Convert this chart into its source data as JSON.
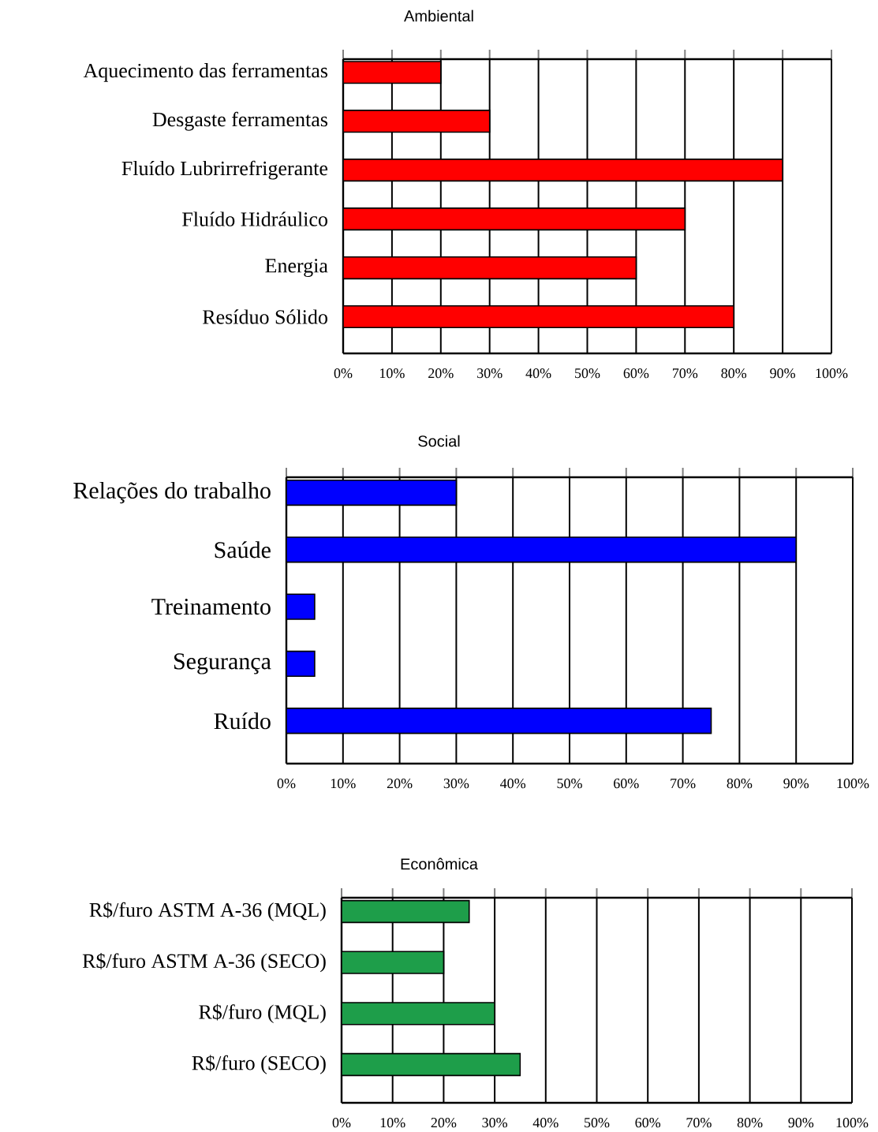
{
  "chart_data": [
    {
      "type": "bar",
      "orientation": "horizontal",
      "title": "Ambiental",
      "categories": [
        "Aquecimento das ferramentas",
        "Desgaste ferramentas",
        "Fluído Lubrirrefrigerante",
        "Fluído Hidráulico",
        "Energia",
        "Resíduo Sólido"
      ],
      "values": [
        20,
        30,
        90,
        70,
        60,
        80
      ],
      "color": "#ff0000",
      "xlim": [
        0,
        100
      ],
      "xticks": [
        {
          "value": 0,
          "label": "0%"
        },
        {
          "value": 10,
          "label": "10%"
        },
        {
          "value": 20,
          "label": "20%"
        },
        {
          "value": 30,
          "label": "30%"
        },
        {
          "value": 40,
          "label": "40%"
        },
        {
          "value": 50,
          "label": "50%"
        },
        {
          "value": 60,
          "label": "60%"
        },
        {
          "value": 70,
          "label": "70%"
        },
        {
          "value": 80,
          "label": "80%"
        },
        {
          "value": 90,
          "label": "90%"
        },
        {
          "value": 100,
          "label": "100%"
        }
      ],
      "grid": "x"
    },
    {
      "type": "bar",
      "orientation": "horizontal",
      "title": "Social",
      "categories": [
        "Relações do trabalho",
        "Saúde",
        "Treinamento",
        "Segurança",
        "Ruído"
      ],
      "values": [
        30,
        90,
        5,
        5,
        75
      ],
      "color": "#0000ff",
      "xlim": [
        0,
        100
      ],
      "xticks": [
        {
          "value": 0,
          "label": "0%"
        },
        {
          "value": 10,
          "label": "10%"
        },
        {
          "value": 20,
          "label": "20%"
        },
        {
          "value": 30,
          "label": "30%"
        },
        {
          "value": 40,
          "label": "40%"
        },
        {
          "value": 50,
          "label": "50%"
        },
        {
          "value": 60,
          "label": "60%"
        },
        {
          "value": 70,
          "label": "70%"
        },
        {
          "value": 80,
          "label": "80%"
        },
        {
          "value": 90,
          "label": "90%"
        },
        {
          "value": 100,
          "label": "100%"
        }
      ],
      "grid": "x"
    },
    {
      "type": "bar",
      "orientation": "horizontal",
      "title": "Econômica",
      "categories": [
        "R$/furo ASTM A-36 (MQL)",
        "R$/furo ASTM A-36 (SECO)",
        "R$/furo (MQL)",
        "R$/furo (SECO)"
      ],
      "values": [
        25,
        20,
        30,
        35
      ],
      "color": "#1e9e4a",
      "xlim": [
        0,
        100
      ],
      "xticks": [
        {
          "value": 0,
          "label": "0%"
        },
        {
          "value": 10,
          "label": "10%"
        },
        {
          "value": 20,
          "label": "20%"
        },
        {
          "value": 30,
          "label": "30%"
        },
        {
          "value": 40,
          "label": "40%"
        },
        {
          "value": 50,
          "label": "50%"
        },
        {
          "value": 60,
          "label": "60%"
        },
        {
          "value": 70,
          "label": "70%"
        },
        {
          "value": 80,
          "label": "80%"
        },
        {
          "value": 90,
          "label": "90%"
        },
        {
          "value": 100,
          "label": "100%"
        }
      ],
      "grid": "x"
    }
  ]
}
